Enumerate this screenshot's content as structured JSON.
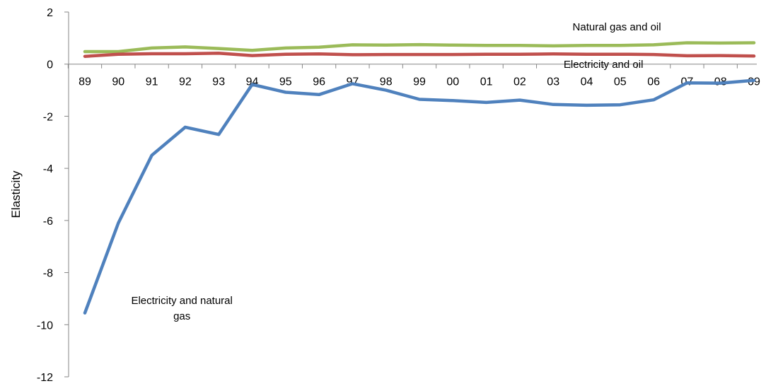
{
  "chart_data": {
    "type": "line",
    "title": "",
    "xlabel": "",
    "ylabel": "Elasticity",
    "ylim": [
      -12,
      2
    ],
    "yticks": [
      2,
      0,
      -2,
      -4,
      -6,
      -8,
      -10,
      -12
    ],
    "ytick_labels": [
      "2",
      "0",
      "-2",
      "-4",
      "-6",
      "-8",
      "-10",
      "-12"
    ],
    "categories": [
      "89",
      "90",
      "91",
      "92",
      "93",
      "94",
      "95",
      "96",
      "97",
      "98",
      "99",
      "00",
      "01",
      "02",
      "03",
      "04",
      "05",
      "06",
      "07",
      "08",
      "09"
    ],
    "grid": false,
    "legend": "none",
    "series": [
      {
        "name": "Natural gas and oil",
        "color": "#9BBB59",
        "values": [
          0.48,
          0.48,
          0.62,
          0.66,
          0.6,
          0.53,
          0.62,
          0.65,
          0.74,
          0.73,
          0.75,
          0.73,
          0.72,
          0.72,
          0.7,
          0.72,
          0.72,
          0.74,
          0.82,
          0.81,
          0.82
        ]
      },
      {
        "name": "Electricity and oil",
        "color": "#C0504D",
        "values": [
          0.3,
          0.38,
          0.4,
          0.4,
          0.42,
          0.33,
          0.38,
          0.39,
          0.36,
          0.37,
          0.37,
          0.37,
          0.38,
          0.38,
          0.39,
          0.38,
          0.38,
          0.37,
          0.32,
          0.33,
          0.31
        ]
      },
      {
        "name": "Electricity and natural gas",
        "color": "#4F81BD",
        "values": [
          -9.55,
          -6.1,
          -3.5,
          -2.42,
          -2.7,
          -0.78,
          -1.08,
          -1.17,
          -0.75,
          -1.0,
          -1.35,
          -1.4,
          -1.47,
          -1.38,
          -1.55,
          -1.58,
          -1.56,
          -1.37,
          -0.72,
          -0.73,
          -0.62
        ]
      }
    ],
    "annotations": [
      {
        "lines": [
          "Natural gas and oil"
        ],
        "category_index": 15.9,
        "y": 1.3
      },
      {
        "lines": [
          "Electricity and oil"
        ],
        "category_index": 15.5,
        "y": -0.15
      },
      {
        "lines": [
          "Electricity and natural",
          "gas"
        ],
        "category_index": 2.9,
        "y": -9.2
      }
    ]
  }
}
